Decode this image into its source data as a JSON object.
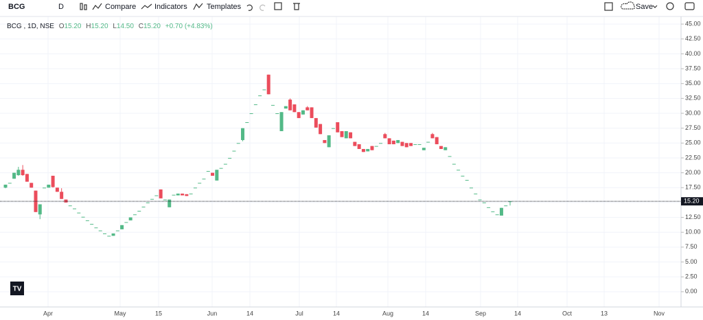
{
  "toolbar": {
    "symbol": "BCG",
    "interval": "D",
    "compare": "Compare",
    "indicators": "Indicators",
    "templates": "Templates",
    "save": "Save"
  },
  "chart_data": {
    "type": "candlestick",
    "legend": {
      "title": "BCG , 1D, NSE",
      "open_label": "O",
      "open": "15.20",
      "high_label": "H",
      "high": "15.20",
      "low_label": "L",
      "low": "14.50",
      "close_label": "C",
      "close": "15.20",
      "change": "+0.70 (+4.83%)"
    },
    "x_labels": [
      "Apr",
      "May",
      "15",
      "Jun",
      "14",
      "Jul",
      "14",
      "Aug",
      "14",
      "Sep",
      "14",
      "Oct",
      "13",
      "Nov"
    ],
    "ohlc": [
      [
        17.5,
        18,
        17.4,
        18
      ],
      [
        18.3,
        18.3,
        18.3,
        18.3
      ],
      [
        19,
        20,
        19,
        20
      ],
      [
        19.6,
        21,
        19.5,
        20.5
      ],
      [
        20.5,
        21.3,
        19.5,
        19.6
      ],
      [
        19.8,
        19.8,
        18.5,
        18.5
      ],
      [
        18.3,
        18.3,
        17.5,
        17.5
      ],
      [
        17,
        17,
        13.4,
        13.4
      ],
      [
        13,
        14.7,
        12.2,
        14.7
      ],
      [
        17.5,
        17.5,
        17.5,
        17.5
      ],
      [
        17.5,
        18,
        17.5,
        18
      ],
      [
        19.5,
        19.5,
        17.5,
        17.6
      ],
      [
        17.5,
        17.5,
        16.8,
        16.8
      ],
      [
        16.8,
        17.4,
        15.6,
        15.6
      ],
      [
        15.5,
        15.5,
        15,
        15
      ],
      [
        14.5,
        14.5,
        14.5,
        14.5
      ],
      [
        14,
        14,
        14,
        14
      ],
      [
        13.3,
        13.3,
        13.3,
        13.3
      ],
      [
        12.6,
        12.6,
        12.6,
        12.6
      ],
      [
        12,
        12,
        12,
        12
      ],
      [
        11.4,
        11.4,
        11.4,
        11.4
      ],
      [
        10.8,
        10.8,
        10.8,
        10.8
      ],
      [
        10.3,
        10.3,
        10.3,
        10.3
      ],
      [
        9.8,
        9.8,
        9.8,
        9.8
      ],
      [
        9.4,
        9.4,
        9.4,
        9.4
      ],
      [
        9.4,
        9.8,
        9.4,
        9.8
      ],
      [
        10.3,
        10.3,
        10.3,
        10.3
      ],
      [
        10.5,
        11.2,
        10.5,
        11.2
      ],
      [
        11.7,
        11.7,
        11.7,
        11.7
      ],
      [
        12,
        12.5,
        12,
        12.5
      ],
      [
        13,
        13,
        13,
        13
      ],
      [
        13.6,
        13.6,
        13.6,
        13.6
      ],
      [
        14.3,
        14.3,
        14.3,
        14.3
      ],
      [
        15,
        15,
        15,
        15
      ],
      [
        15.6,
        15.6,
        15.6,
        15.6
      ],
      [
        16.2,
        16.2,
        16.2,
        16.2
      ],
      [
        17.2,
        17.2,
        15.7,
        15.7
      ],
      [
        15.5,
        15.5,
        15.5,
        15.5
      ],
      [
        14.2,
        15.5,
        14.2,
        15.5
      ],
      [
        16.3,
        16.3,
        16.3,
        16.3
      ],
      [
        16.2,
        16.5,
        16.2,
        16.5
      ],
      [
        16.5,
        16.5,
        16.2,
        16.2
      ],
      [
        16.4,
        16.4,
        16.1,
        16.1
      ],
      [
        16.5,
        16.5,
        16.5,
        16.5
      ],
      [
        17.5,
        17.5,
        17.5,
        17.5
      ],
      [
        18.3,
        18.3,
        18.3,
        18.3
      ],
      [
        19,
        19,
        19,
        19
      ],
      [
        20.3,
        20.3,
        20.3,
        20.3
      ],
      [
        20,
        20,
        19.5,
        19.5
      ],
      [
        18.7,
        20.5,
        18.7,
        20.5
      ],
      [
        20.8,
        20.8,
        20.8,
        20.8
      ],
      [
        21.5,
        21.5,
        21.5,
        21.5
      ],
      [
        22.5,
        22.5,
        22.5,
        22.5
      ],
      [
        23.7,
        23.7,
        23.7,
        23.7
      ],
      [
        25,
        25,
        25,
        25
      ],
      [
        25.5,
        27.5,
        25.3,
        27.5
      ],
      [
        28.5,
        28.5,
        28.5,
        28.5
      ],
      [
        30,
        30,
        30,
        30
      ],
      [
        31.5,
        31.5,
        31.5,
        31.5
      ],
      [
        33,
        33,
        33,
        33
      ],
      [
        34,
        34,
        34,
        34
      ],
      [
        36.5,
        36.5,
        33.2,
        33.2
      ],
      [
        31.4,
        31.4,
        31.4,
        31.4
      ],
      [
        30,
        30,
        30,
        30
      ],
      [
        27,
        30.2,
        27,
        30.2
      ],
      [
        30.8,
        31.2,
        30.8,
        31.2
      ],
      [
        32.3,
        32.5,
        30.5,
        30.5
      ],
      [
        31.5,
        31.5,
        30.2,
        30.2
      ],
      [
        30.2,
        30.2,
        29.2,
        29.2
      ],
      [
        29.8,
        30.5,
        29.8,
        30.5
      ],
      [
        31,
        31.2,
        30.5,
        30.5
      ],
      [
        31,
        31,
        29.2,
        29.2
      ],
      [
        29.2,
        29.2,
        27.6,
        27.6
      ],
      [
        28.2,
        28.2,
        26.5,
        26.5
      ],
      [
        25.5,
        25.5,
        25,
        25
      ],
      [
        24.3,
        26.3,
        24.3,
        26.3
      ],
      [
        27.5,
        27.5,
        27.5,
        27.5
      ],
      [
        28.5,
        28.5,
        26.8,
        26.8
      ],
      [
        27,
        27,
        26,
        26
      ],
      [
        25.8,
        27,
        25.8,
        27
      ],
      [
        26.8,
        26.8,
        25.8,
        25.8
      ],
      [
        25.2,
        25.2,
        24.5,
        24.5
      ],
      [
        24.8,
        24.8,
        24,
        24
      ],
      [
        24,
        24,
        23.5,
        23.5
      ],
      [
        23.6,
        24,
        23.6,
        24
      ],
      [
        24.5,
        24.5,
        23.8,
        23.8
      ],
      [
        24.5,
        24.5,
        24.5,
        24.5
      ],
      [
        25,
        25,
        25,
        25
      ],
      [
        26.5,
        26.7,
        25.8,
        25.8
      ],
      [
        25.8,
        25.8,
        24.8,
        24.8
      ],
      [
        25.4,
        25.4,
        24.8,
        24.8
      ],
      [
        25,
        25.5,
        25,
        25.5
      ],
      [
        25.2,
        25.2,
        24.5,
        24.5
      ],
      [
        25,
        25,
        24.3,
        24.3
      ],
      [
        25,
        25,
        24.5,
        24.5
      ],
      [
        24.8,
        24.8,
        24.8,
        24.8
      ],
      [
        24.8,
        24.8,
        24.8,
        24.8
      ],
      [
        23.8,
        24.2,
        23.8,
        24.2
      ],
      [
        25.2,
        25.2,
        25.2,
        25.2
      ],
      [
        26.5,
        26.7,
        25.8,
        25.8
      ],
      [
        26,
        26,
        24.8,
        24.8
      ],
      [
        24.5,
        24.5,
        24,
        24
      ],
      [
        23.8,
        24.3,
        23.8,
        24.3
      ],
      [
        22.8,
        22.8,
        22.8,
        22.8
      ],
      [
        21.5,
        21.5,
        21.5,
        21.5
      ],
      [
        20.5,
        20.5,
        20.5,
        20.5
      ],
      [
        19.5,
        19.5,
        19.5,
        19.5
      ],
      [
        18.8,
        18.8,
        18.8,
        18.8
      ],
      [
        17.5,
        17.5,
        17.5,
        17.5
      ],
      [
        16.5,
        16.5,
        16.5,
        16.5
      ],
      [
        15.5,
        15.5,
        15.5,
        15.5
      ],
      [
        15,
        15,
        15,
        15
      ],
      [
        14.2,
        14.2,
        14.2,
        14.2
      ],
      [
        13.5,
        13.5,
        13.5,
        13.5
      ],
      [
        13,
        13,
        13,
        13
      ],
      [
        12.8,
        14.1,
        12.8,
        14.1
      ],
      [
        14.5,
        14.5,
        14.5,
        14.5
      ],
      [
        15.2,
        15.2,
        14.5,
        15.2
      ]
    ],
    "up_color": "#53b987",
    "down_color": "#eb4d5c",
    "ylim": [
      -2.56,
      46.28
    ],
    "yticks": [
      {
        "value": 0,
        "label": "0.00"
      },
      {
        "value": 2.5,
        "label": "2.50"
      },
      {
        "value": 5,
        "label": "5.00"
      },
      {
        "value": 7.5,
        "label": "7.50"
      },
      {
        "value": 10,
        "label": "10.00"
      },
      {
        "value": 12.5,
        "label": "12.50"
      },
      {
        "value": 15,
        "label": "15.00"
      },
      {
        "value": 17.5,
        "label": "17.50"
      },
      {
        "value": 20,
        "label": "20.00"
      },
      {
        "value": 22.5,
        "label": "22.50"
      },
      {
        "value": 25,
        "label": "25.00"
      },
      {
        "value": 27.5,
        "label": "27.50"
      },
      {
        "value": 30,
        "label": "30.00"
      },
      {
        "value": 32.5,
        "label": "32.50"
      },
      {
        "value": 35,
        "label": "35.00"
      },
      {
        "value": 37.5,
        "label": "37.50"
      },
      {
        "value": 40,
        "label": "40.00"
      },
      {
        "value": 42.5,
        "label": "42.50"
      },
      {
        "value": 45,
        "label": "45.00"
      }
    ],
    "last_price": {
      "value": 15.2,
      "label": "15.20"
    },
    "grid": true
  }
}
